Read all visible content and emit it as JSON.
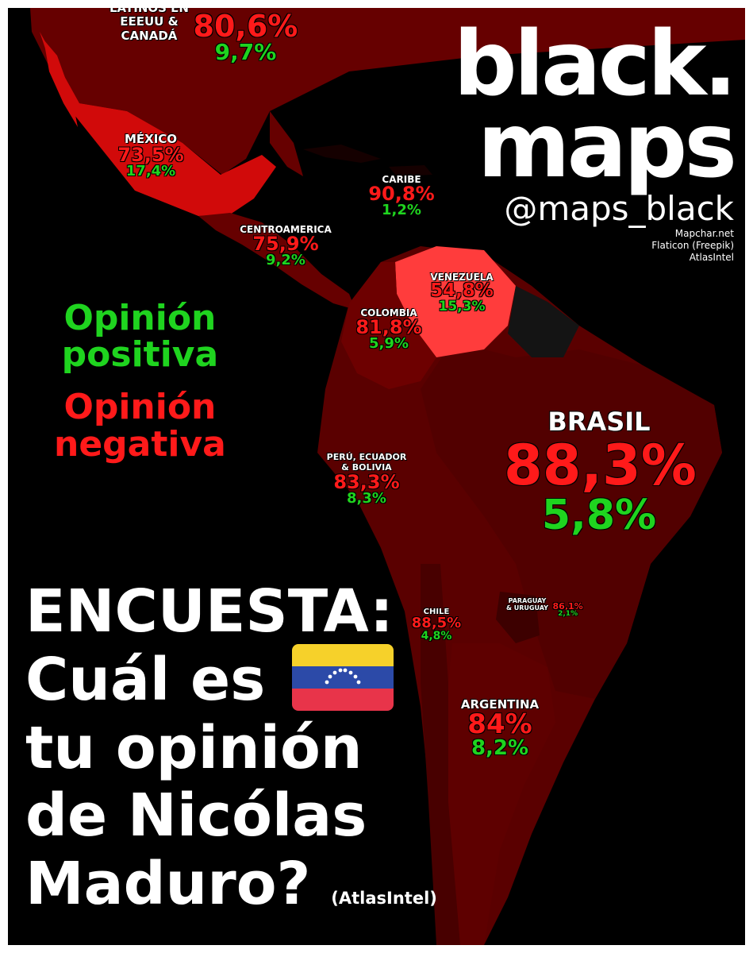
{
  "brand": {
    "title_line1": "black.",
    "title_line2": "maps",
    "handle": "@maps_black",
    "sources": [
      "Mapchar.net",
      "Flaticon (Freepik)",
      "AtlasIntel"
    ]
  },
  "legend": {
    "positive": [
      "Opinión",
      "positiva"
    ],
    "negative": [
      "Opinión",
      "negativa"
    ],
    "positive_color": "#1fd41f",
    "negative_color": "#ff1a1a"
  },
  "question": {
    "line1": "ENCUESTA:",
    "line2": "Cuál es",
    "line3": "tu opinión",
    "line4": "de Nicólas",
    "line5": "Maduro?",
    "source": "(AtlasIntel)",
    "flag_icon": "venezuela-flag-icon"
  },
  "regions": {
    "latinos": {
      "name": [
        "LATINOS EN",
        "EEEUU &",
        "CANADÁ"
      ],
      "negative": "80,6%",
      "positive": "9,7%"
    },
    "mexico": {
      "name": [
        "MÉXICO"
      ],
      "negative": "73,5%",
      "positive": "17,4%"
    },
    "caribe": {
      "name": [
        "CARIBE"
      ],
      "negative": "90,8%",
      "positive": "1,2%"
    },
    "centroamerica": {
      "name": [
        "CENTROAMERICA"
      ],
      "negative": "75,9%",
      "positive": "9,2%"
    },
    "venezuela": {
      "name": [
        "VENEZUELA"
      ],
      "negative": "54,8%",
      "positive": "15,3%"
    },
    "colombia": {
      "name": [
        "COLOMBIA"
      ],
      "negative": "81,8%",
      "positive": "5,9%"
    },
    "brasil": {
      "name": [
        "BRASIL"
      ],
      "negative": "88,3%",
      "positive": "5,8%"
    },
    "peru": {
      "name": [
        "PERÚ, ECUADOR",
        "& BOLIVIA"
      ],
      "negative": "83,3%",
      "positive": "8,3%"
    },
    "chile": {
      "name": [
        "CHILE"
      ],
      "negative": "88,5%",
      "positive": "4,8%"
    },
    "paraguay": {
      "name": [
        "PARAGUAY",
        "& URUGUAY"
      ],
      "negative": "86,1%",
      "positive": "2,1%"
    },
    "argentina": {
      "name": [
        "ARGENTINA"
      ],
      "negative": "84%",
      "positive": "8,2%"
    }
  },
  "colors": {
    "background": "#000000",
    "dark_region": "#5a0000",
    "mexico_fill": "#d10a0a",
    "venezuela_fill": "#ff3c3c",
    "guianas_fill": "#141414"
  }
}
